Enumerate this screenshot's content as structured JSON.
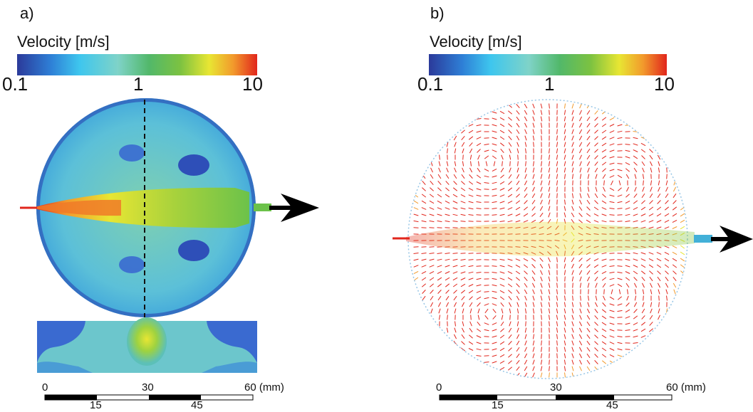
{
  "panels": [
    {
      "label": "a)",
      "colorbar": {
        "title": "Velocity [m/s]",
        "ticks": [
          "0.1",
          "1",
          "10"
        ],
        "scale": "log"
      },
      "scalebar": {
        "top_ticks": [
          "0",
          "30",
          "60 (mm)"
        ],
        "bottom_ticks": [
          "15",
          "45"
        ]
      },
      "view": "velocity magnitude contour, with cross-section along dashed line"
    },
    {
      "label": "b)",
      "colorbar": {
        "title": "Velocity [m/s]",
        "ticks": [
          "0.1",
          "1",
          "10"
        ],
        "scale": "log"
      },
      "scalebar": {
        "top_ticks": [
          "0",
          "30",
          "60 (mm)"
        ],
        "bottom_ticks": [
          "15",
          "45"
        ]
      },
      "view": "velocity vector field"
    }
  ],
  "colormap": [
    "#2b3a9a",
    "#2e7fd6",
    "#3ec6ee",
    "#7fd3c8",
    "#52b86a",
    "#7cc241",
    "#e8e633",
    "#f29a2c",
    "#e1261c"
  ]
}
